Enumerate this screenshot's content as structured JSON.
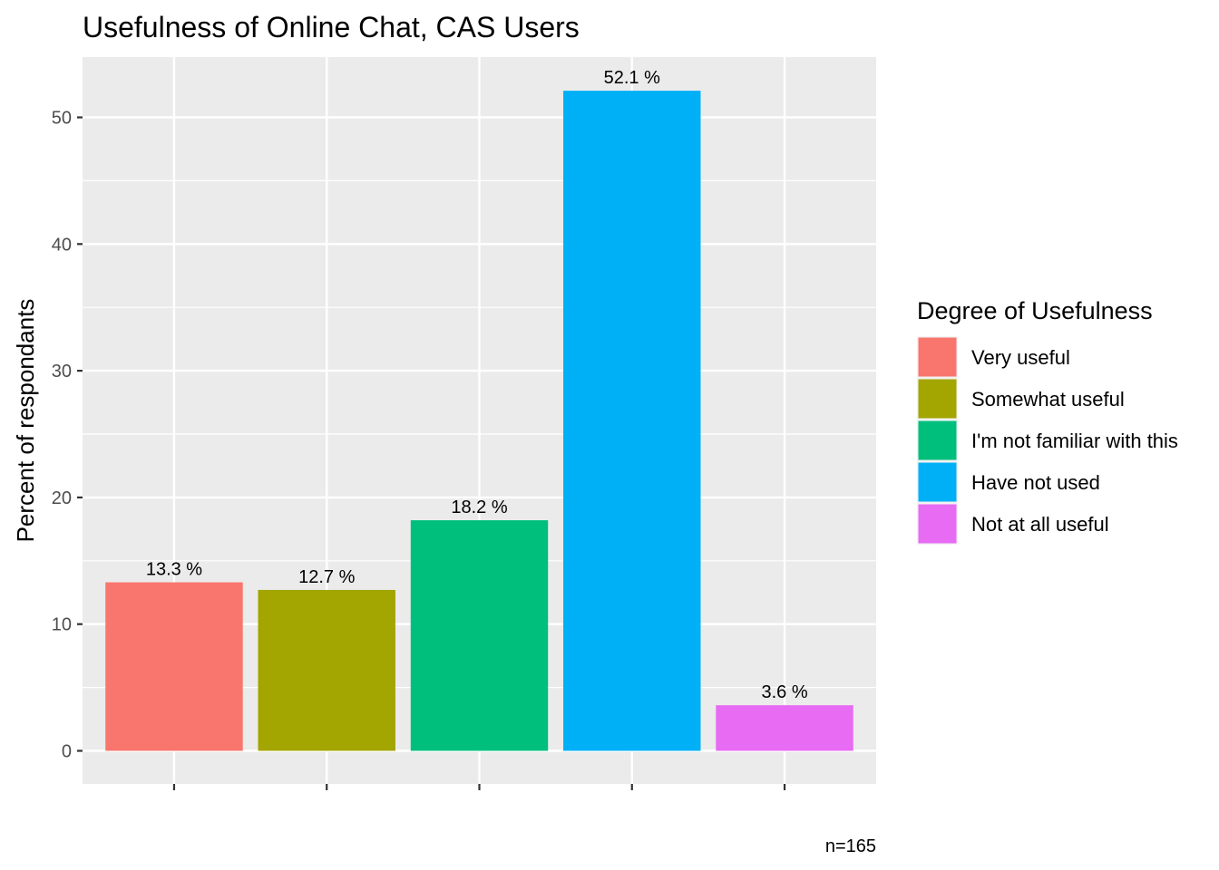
{
  "chart_data": {
    "type": "bar",
    "title": "Usefulness of Online Chat,  CAS Users",
    "xlabel": "",
    "ylabel": "Percent of respondants",
    "caption": "n=165",
    "ylim": [
      0,
      54.8
    ],
    "y_ticks": [
      0,
      10,
      20,
      30,
      40,
      50
    ],
    "grid": true,
    "legend": {
      "title": "Degree of Usefulness",
      "position": "right"
    },
    "categories": [
      "Very useful",
      "Somewhat useful",
      "I'm not familiar with this",
      "Have not used",
      "Not at all useful"
    ],
    "values": [
      13.3,
      12.7,
      18.2,
      52.1,
      3.6
    ],
    "labels": [
      "13.3 %",
      "12.7 %",
      "18.2 %",
      "52.1 %",
      "3.6 %"
    ],
    "colors": [
      "#F8766D",
      "#A3A500",
      "#00BF7D",
      "#00B0F6",
      "#E76BF3"
    ]
  }
}
